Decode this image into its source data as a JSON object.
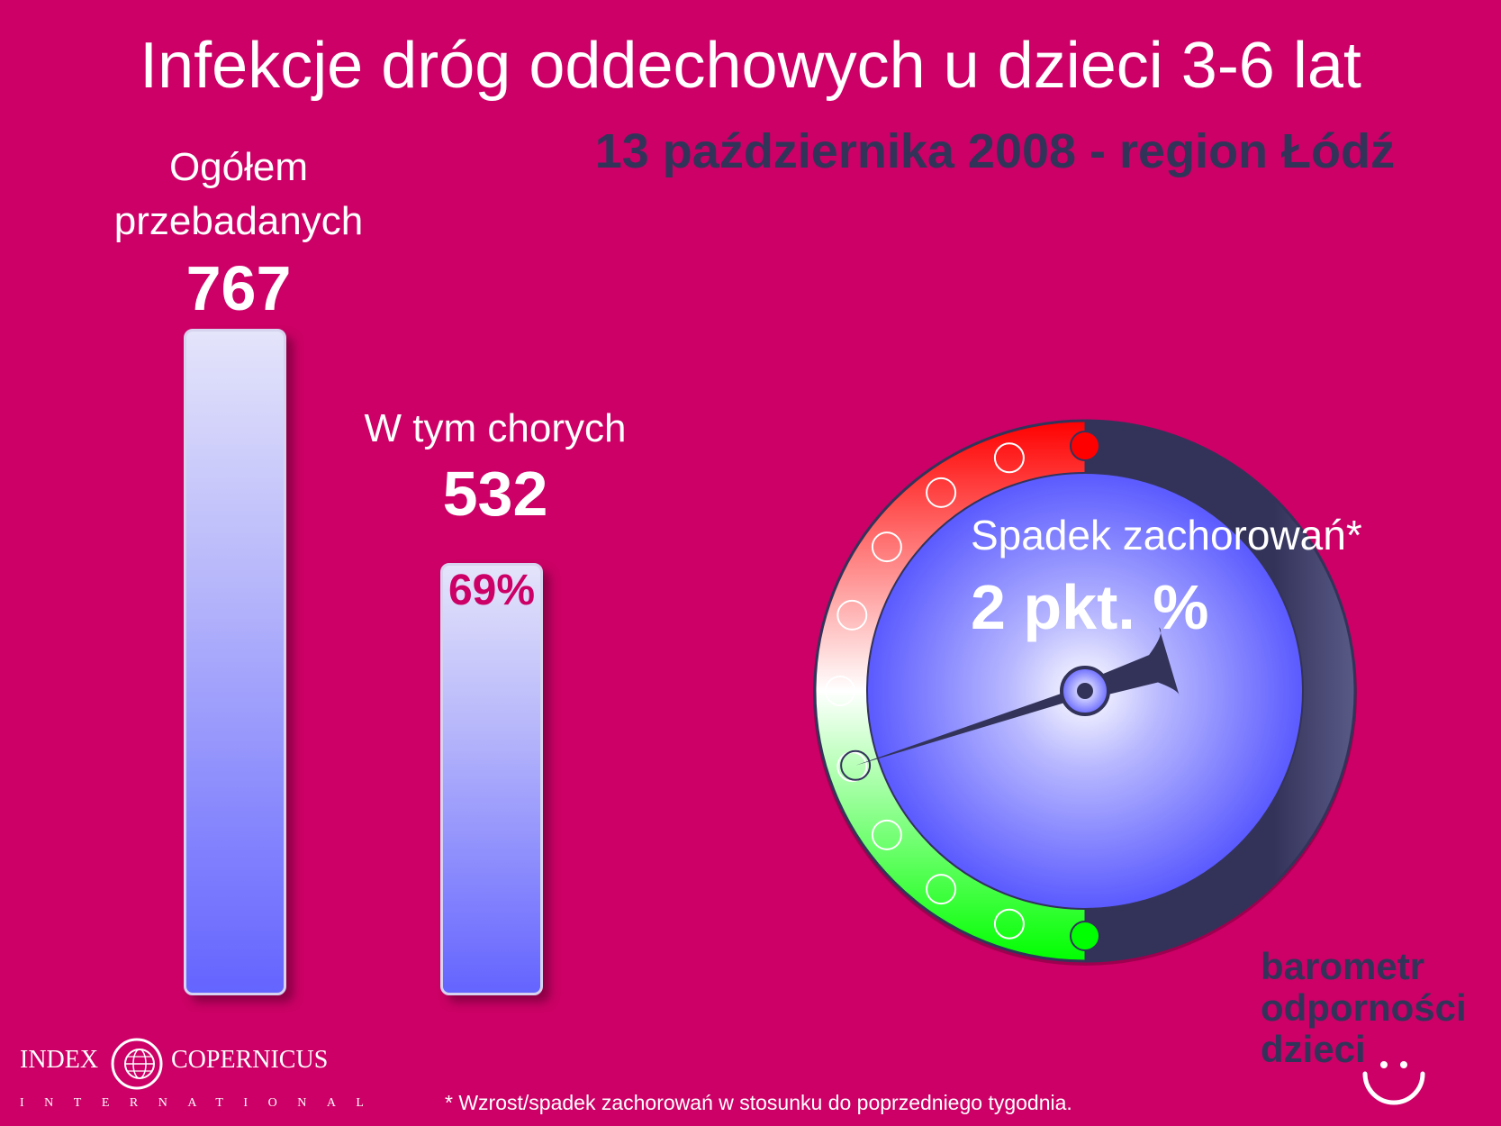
{
  "title": "Infekcje dróg oddechowych u dzieci 3-6 lat",
  "subtitle": "13 października 2008 - region Łódź",
  "chart_data": {
    "type": "bar",
    "categories": [
      "Ogółem przebadanych",
      "W tym chorych"
    ],
    "values": [
      767,
      532
    ],
    "ylim": [
      0,
      767
    ],
    "bars": [
      {
        "label_line1": "Ogółem",
        "label_line2": "przebadanych",
        "value_label": "767"
      },
      {
        "label": "W tym chorych",
        "value_label": "532",
        "percent_label": "69%"
      }
    ],
    "bar_color_top": "#e4e4fb",
    "bar_color_bottom": "#6464ff"
  },
  "gauge": {
    "label": "Spadek zachorowań*",
    "value_label": "2 pkt. %",
    "value": -2,
    "range": [
      -10,
      10
    ],
    "colors": {
      "increase": "#ff0000",
      "decrease": "#00ff00",
      "face": "#6a6aff",
      "dark": "#33335a"
    }
  },
  "brand": {
    "line1": "barometr",
    "line2": "odporności",
    "line3": "dzieci"
  },
  "logo": {
    "left": "INDEX",
    "right": "COPERNICUS",
    "sub": "INTERNATIONAL",
    "icon": "globe-icon"
  },
  "footnote": "* Wzrost/spadek zachorowań w stosunku do poprzedniego tygodnia.",
  "colors": {
    "background": "#cc0066",
    "title": "#ffffff",
    "subtitle": "#33335a",
    "percent": "#cc0066"
  }
}
